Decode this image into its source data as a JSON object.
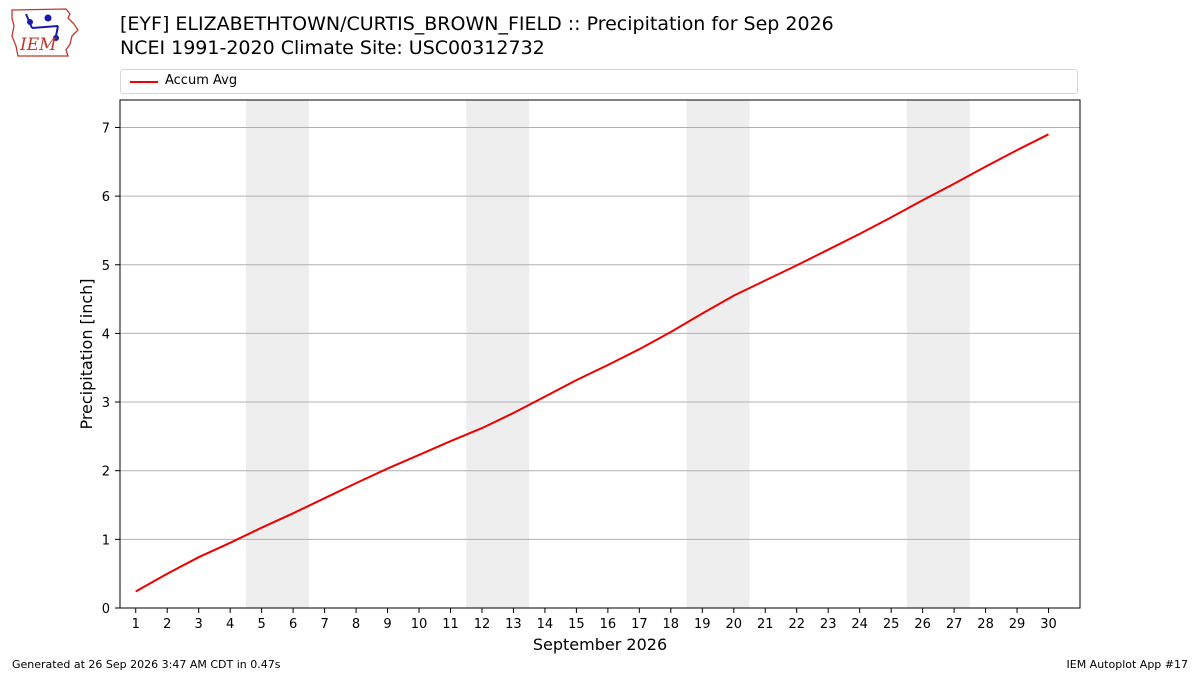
{
  "logo": {
    "text": "IEM",
    "icon": "iem-iowa-logo"
  },
  "title": {
    "line1": "[EYF] ELIZABETHTOWN/CURTIS_BROWN_FIELD :: Precipitation for Sep 2026",
    "line2": "NCEI 1991-2020 Climate Site: USC00312732"
  },
  "footer": {
    "left": "Generated at 26 Sep 2026 3:47 AM CDT in 0.47s",
    "right": "IEM Autoplot App #17"
  },
  "colors": {
    "line": "#ee0000",
    "weekend_band": "#eeeeee",
    "grid": "#b0b0b0"
  },
  "chart_data": {
    "type": "line",
    "xlabel": "September 2026",
    "ylabel": "Precipitation [inch]",
    "xlim": [
      0.5,
      31.0
    ],
    "ylim": [
      0,
      7.4
    ],
    "yticks": [
      0,
      1,
      2,
      3,
      4,
      5,
      6,
      7
    ],
    "x": [
      1,
      2,
      3,
      4,
      5,
      6,
      7,
      8,
      9,
      10,
      11,
      12,
      13,
      14,
      15,
      16,
      17,
      18,
      19,
      20,
      21,
      22,
      23,
      24,
      25,
      26,
      27,
      28,
      29,
      30
    ],
    "xtick_labels": [
      "1",
      "2",
      "3",
      "4",
      "5",
      "6",
      "7",
      "8",
      "9",
      "10",
      "11",
      "12",
      "13",
      "14",
      "15",
      "16",
      "17",
      "18",
      "19",
      "20",
      "21",
      "22",
      "23",
      "24",
      "25",
      "26",
      "27",
      "28",
      "29",
      "30"
    ],
    "shaded_day_ranges": [
      [
        4.5,
        6.5
      ],
      [
        11.5,
        13.5
      ],
      [
        18.5,
        20.5
      ],
      [
        25.5,
        27.5
      ]
    ],
    "grid": "horizontal",
    "legend_position": "top",
    "series": [
      {
        "name": "Accum Avg",
        "values": [
          0.24,
          0.5,
          0.74,
          0.95,
          1.17,
          1.38,
          1.6,
          1.82,
          2.03,
          2.23,
          2.43,
          2.62,
          2.84,
          3.08,
          3.32,
          3.54,
          3.77,
          4.02,
          4.29,
          4.55,
          4.77,
          4.99,
          5.22,
          5.45,
          5.69,
          5.94,
          6.18,
          6.43,
          6.67,
          6.9
        ]
      }
    ]
  }
}
